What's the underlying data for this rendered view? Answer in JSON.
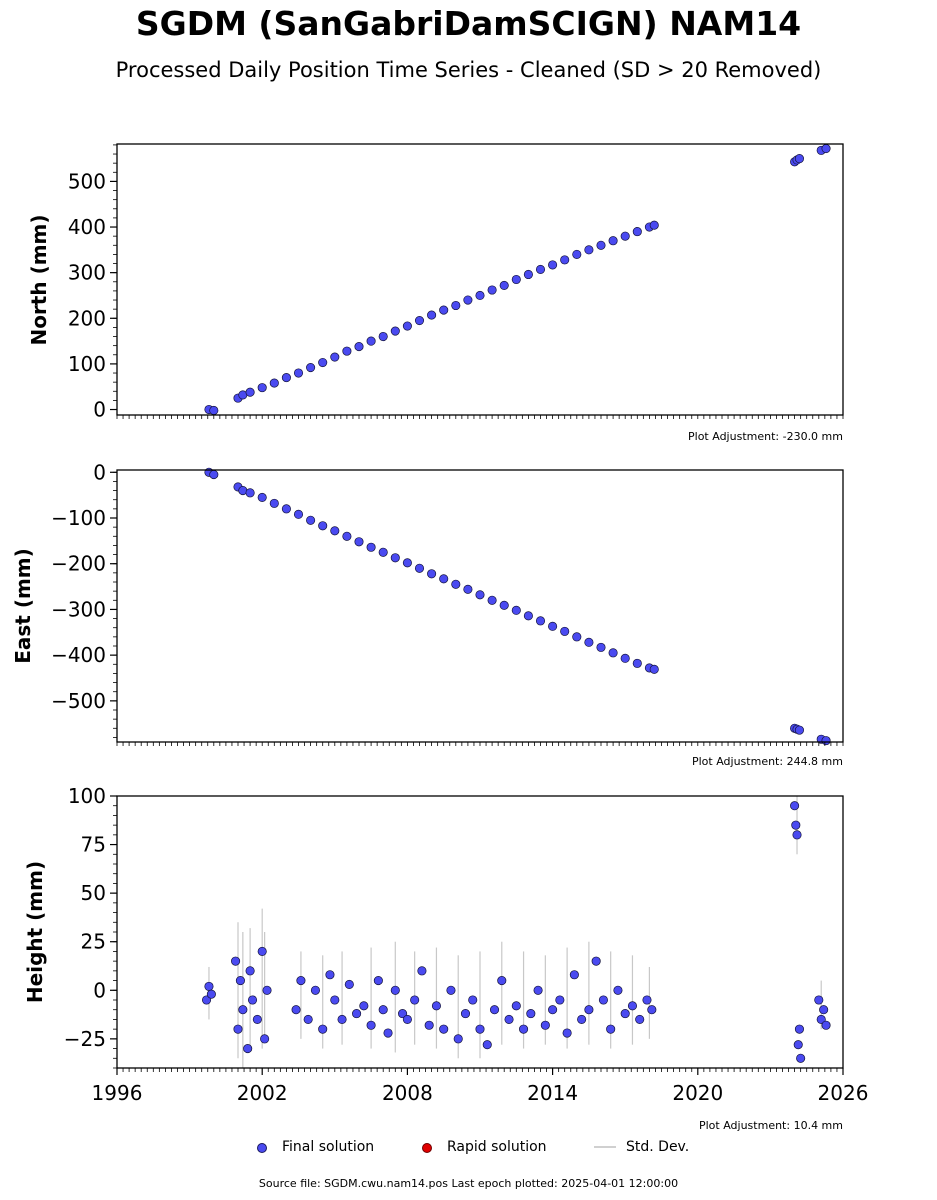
{
  "title": "SGDM (SanGabriDamSCIGN) NAM14",
  "subtitle": "Processed Daily Position Time Series - Cleaned (SD > 20 Removed)",
  "source_note": "Source file: SGDM.cwu.nam14.pos  Last epoch plotted: 2025-04-01 12:00:00",
  "legend": [
    {
      "label": "Final solution",
      "color": "#4a4af0",
      "kind": "marker"
    },
    {
      "label": "Rapid solution",
      "color": "#e00000",
      "kind": "marker"
    },
    {
      "label": "Std. Dev.",
      "color": "#d0d0d0",
      "kind": "line"
    }
  ],
  "chart_data": [
    {
      "type": "scatter",
      "ylabel": "North (mm)",
      "adjustment": "Plot Adjustment: -230.0 mm",
      "xlim": [
        1996,
        2026
      ],
      "ylim": [
        -12,
        582
      ],
      "yticks": [
        0,
        100,
        200,
        300,
        400,
        500
      ],
      "ytick_labels": [
        "0",
        "100",
        "200",
        "300",
        "400",
        "500"
      ],
      "x": [
        1999.8,
        2000.0,
        2001.0,
        2001.2,
        2001.5,
        2002.0,
        2002.5,
        2003.0,
        2003.5,
        2004.0,
        2004.5,
        2005.0,
        2005.5,
        2006.0,
        2006.5,
        2007.0,
        2007.5,
        2008.0,
        2008.5,
        2009.0,
        2009.5,
        2010.0,
        2010.5,
        2011.0,
        2011.5,
        2012.0,
        2012.5,
        2013.0,
        2013.5,
        2014.0,
        2014.5,
        2015.0,
        2015.5,
        2016.0,
        2016.5,
        2017.0,
        2017.5,
        2018.0,
        2018.2,
        2024.0,
        2024.1,
        2024.2,
        2025.1,
        2025.3
      ],
      "y": [
        0,
        -2,
        25,
        32,
        38,
        48,
        58,
        70,
        80,
        92,
        103,
        115,
        128,
        138,
        150,
        160,
        172,
        183,
        195,
        207,
        218,
        228,
        240,
        250,
        262,
        272,
        285,
        296,
        307,
        317,
        328,
        340,
        350,
        360,
        370,
        380,
        390,
        400,
        404,
        543,
        547,
        550,
        568,
        572
      ]
    },
    {
      "type": "scatter",
      "ylabel": "East (mm)",
      "adjustment": "Plot Adjustment: 244.8 mm",
      "xlim": [
        1996,
        2026
      ],
      "ylim": [
        -590,
        5
      ],
      "yticks": [
        0,
        -100,
        -200,
        -300,
        -400,
        -500
      ],
      "ytick_labels": [
        "0",
        "−100",
        "−200",
        "−300",
        "−400",
        "−500"
      ],
      "x": [
        1999.8,
        2000.0,
        2001.0,
        2001.2,
        2001.5,
        2002.0,
        2002.5,
        2003.0,
        2003.5,
        2004.0,
        2004.5,
        2005.0,
        2005.5,
        2006.0,
        2006.5,
        2007.0,
        2007.5,
        2008.0,
        2008.5,
        2009.0,
        2009.5,
        2010.0,
        2010.5,
        2011.0,
        2011.5,
        2012.0,
        2012.5,
        2013.0,
        2013.5,
        2014.0,
        2014.5,
        2015.0,
        2015.5,
        2016.0,
        2016.5,
        2017.0,
        2017.5,
        2018.0,
        2018.2,
        2024.0,
        2024.1,
        2024.2,
        2025.1,
        2025.3
      ],
      "y": [
        0,
        -5,
        -32,
        -40,
        -45,
        -55,
        -68,
        -80,
        -92,
        -105,
        -117,
        -128,
        -140,
        -152,
        -164,
        -175,
        -187,
        -198,
        -210,
        -222,
        -233,
        -245,
        -256,
        -268,
        -280,
        -291,
        -302,
        -314,
        -325,
        -337,
        -348,
        -360,
        -372,
        -383,
        -395,
        -407,
        -418,
        -428,
        -431,
        -560,
        -562,
        -564,
        -584,
        -587
      ]
    },
    {
      "type": "scatter",
      "ylabel": "Height (mm)",
      "adjustment": "Plot Adjustment: 10.4 mm",
      "xlim": [
        1996,
        2026
      ],
      "ylim": [
        -40,
        100
      ],
      "yticks": [
        -25,
        0,
        25,
        50,
        75,
        100
      ],
      "ytick_labels": [
        "−25",
        "0",
        "25",
        "50",
        "75",
        "100"
      ],
      "xticks": [
        1996,
        2002,
        2008,
        2014,
        2020,
        2026
      ],
      "xtick_labels": [
        "1996",
        "2002",
        "2008",
        "2014",
        "2020",
        "2026"
      ],
      "x": [
        1999.7,
        1999.8,
        1999.9,
        2000.9,
        2001.0,
        2001.1,
        2001.2,
        2001.4,
        2001.5,
        2001.6,
        2001.8,
        2002.0,
        2002.1,
        2002.2,
        2003.4,
        2003.6,
        2003.9,
        2004.2,
        2004.5,
        2004.8,
        2005.0,
        2005.3,
        2005.6,
        2005.9,
        2006.2,
        2006.5,
        2006.8,
        2007.0,
        2007.2,
        2007.5,
        2007.8,
        2008.0,
        2008.3,
        2008.6,
        2008.9,
        2009.2,
        2009.5,
        2009.8,
        2010.1,
        2010.4,
        2010.7,
        2011.0,
        2011.3,
        2011.6,
        2011.9,
        2012.2,
        2012.5,
        2012.8,
        2013.1,
        2013.4,
        2013.7,
        2014.0,
        2014.3,
        2014.6,
        2014.9,
        2015.2,
        2015.5,
        2015.8,
        2016.1,
        2016.4,
        2016.7,
        2017.0,
        2017.3,
        2017.6,
        2017.9,
        2018.1,
        2024.0,
        2024.05,
        2024.1,
        2024.15,
        2024.2,
        2024.25,
        2025.0,
        2025.1,
        2025.2,
        2025.3
      ],
      "y": [
        -5,
        2,
        -2,
        15,
        -20,
        5,
        -10,
        -30,
        10,
        -5,
        -15,
        20,
        -25,
        0,
        -10,
        5,
        -15,
        0,
        -20,
        8,
        -5,
        -15,
        3,
        -12,
        -8,
        -18,
        5,
        -10,
        -22,
        0,
        -12,
        -15,
        -5,
        10,
        -18,
        -8,
        -20,
        0,
        -25,
        -12,
        -5,
        -20,
        -28,
        -10,
        5,
        -15,
        -8,
        -20,
        -12,
        0,
        -18,
        -10,
        -5,
        -22,
        8,
        -15,
        -10,
        15,
        -5,
        -20,
        0,
        -12,
        -8,
        -15,
        -5,
        -10,
        95,
        85,
        80,
        -28,
        -20,
        -35,
        -5,
        -15,
        -10,
        -18
      ],
      "err_x": [
        1999.8,
        2001.0,
        2001.2,
        2001.5,
        2002.0,
        2002.1,
        2003.6,
        2004.5,
        2005.3,
        2006.5,
        2007.5,
        2008.3,
        2009.2,
        2010.1,
        2011.0,
        2011.9,
        2012.8,
        2013.7,
        2014.6,
        2015.5,
        2016.4,
        2017.3,
        2018.0,
        2024.1,
        2025.1
      ],
      "err_lo": [
        -15,
        -35,
        -40,
        -30,
        -30,
        -25,
        -25,
        -30,
        -28,
        -30,
        -32,
        -28,
        -30,
        -35,
        -35,
        -28,
        -30,
        -28,
        -30,
        -28,
        -30,
        -28,
        -25,
        70,
        -20
      ],
      "err_hi": [
        12,
        35,
        30,
        32,
        42,
        30,
        20,
        18,
        20,
        22,
        25,
        20,
        22,
        18,
        20,
        25,
        20,
        18,
        22,
        25,
        20,
        18,
        12,
        100,
        5
      ]
    }
  ]
}
